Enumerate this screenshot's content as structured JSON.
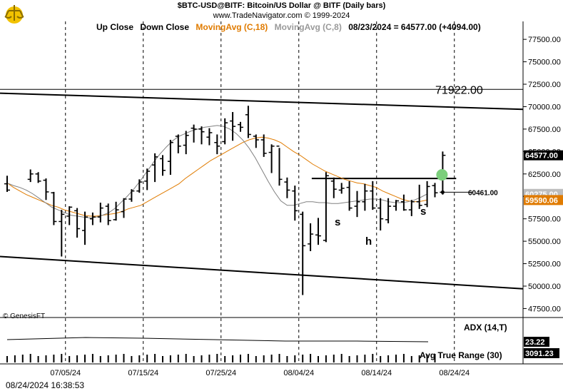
{
  "header": {
    "line1": "$BTC-USD@BITF:  Bitcoin/US Dollar @ BITF  (Daily bars)",
    "line2": "www.TradeNavigator.com © 1999-2024"
  },
  "legend": {
    "up_close": "Up Close",
    "down_close": "Down Close",
    "ma18": "MovingAvg (C,18)",
    "ma8": "MovingAvg (C,8)",
    "quote": "08/23/2024 = 64577.00 (+4094.00)"
  },
  "colors": {
    "ma18": "#e07b00",
    "ma8": "#808080",
    "bars": "#000000",
    "green_dot": "#7ccf7c",
    "tag_bg": "#000000",
    "tag_ma8": "#bdbdbd",
    "tag_ma18": "#e07b00"
  },
  "price_tags": {
    "last": "64577.00",
    "ma8": "60275.00",
    "ma18": "59590.06",
    "marker": "60461.00",
    "level": "71922.00"
  },
  "pattern_labels": {
    "left_shoulder": "s",
    "head": "h",
    "right_shoulder": "s"
  },
  "indicators": {
    "adx_label": "ADX (14,T)",
    "adx_value": "23.22",
    "atr_label": "Avg True Range (30)",
    "atr_value": "3091.23"
  },
  "copyright": "© GenesisFT",
  "timestamp": "08/24/2024 16:38:53",
  "chart_data": {
    "type": "ohlc",
    "title": "$BTC-USD@BITF: Bitcoin/US Dollar @ BITF (Daily bars)",
    "y_ticks": [
      "77500.00",
      "75000.00",
      "72500.00",
      "70000.00",
      "67500.00",
      "65000.00",
      "62500.00",
      "60000.00",
      "57500.00",
      "55000.00",
      "52500.00",
      "50000.00",
      "47500.00"
    ],
    "ylim": [
      46500,
      79500
    ],
    "x_ticks": [
      "07/05/24",
      "07/15/24",
      "07/25/24",
      "08/04/24",
      "08/14/24",
      "08/24/24"
    ],
    "horizontal_levels": [
      71922,
      62000
    ],
    "trendlines": [
      {
        "from": [
          "06/25/24",
          71500
        ],
        "to": [
          "08/31/24",
          69700
        ]
      },
      {
        "from": [
          "06/25/24",
          53300
        ],
        "to": [
          "08/31/24",
          49700
        ]
      }
    ],
    "series": [
      {
        "name": "MovingAvg (C,18)",
        "values": [
          61500,
          61000,
          60600,
          60200,
          59900,
          59600,
          59300,
          59000,
          58800,
          58500,
          58300,
          58100,
          57900,
          57800,
          57800,
          57900,
          58000,
          58100,
          58300,
          58600,
          58800,
          59000,
          59400,
          59800,
          60200,
          60600,
          61000,
          61400,
          62000,
          62500,
          63000,
          63500,
          64000,
          64400,
          64800,
          65200,
          65600,
          66000,
          66300,
          66500,
          66600,
          66500,
          66300,
          66000,
          65500,
          65000,
          64600,
          64100,
          63600,
          63200,
          62800,
          62500,
          62200,
          61900,
          61700,
          61500,
          61400,
          61200,
          61000,
          60600,
          60300,
          60000,
          59700,
          59500,
          59400,
          59450,
          59590
        ]
      },
      {
        "name": "MovingAvg (C,8)",
        "values": [
          61500,
          61200,
          61000,
          60700,
          60300,
          59800,
          59300,
          58800,
          58500,
          58200,
          57900,
          57800,
          57700,
          57600,
          57700,
          57900,
          58200,
          58700,
          59400,
          60100,
          60900,
          61800,
          62800,
          63800,
          64700,
          65500,
          66200,
          66700,
          67000,
          67300,
          67500,
          67700,
          67800,
          67900,
          67800,
          67500,
          67000,
          66300,
          65400,
          64300,
          63000,
          61700,
          60500,
          59500,
          59000,
          59000,
          59200,
          59400,
          59400,
          59300,
          59300,
          59200,
          59200,
          59300,
          59400,
          59500,
          59600,
          59700,
          59700,
          59600,
          59400,
          59300,
          59300,
          59400,
          59600,
          59900,
          60275
        ]
      }
    ],
    "bars": [
      {
        "date": "06/28",
        "h": 62300,
        "l": 60500,
        "o": 61400,
        "c": 60700
      },
      {
        "date": "07/01",
        "h": 63000,
        "l": 61600,
        "o": 61900,
        "c": 62500
      },
      {
        "date": "07/02",
        "h": 62700,
        "l": 61500,
        "o": 62500,
        "c": 61700
      },
      {
        "date": "07/03",
        "h": 62000,
        "l": 59600,
        "o": 61800,
        "c": 60500
      },
      {
        "date": "07/04",
        "h": 60500,
        "l": 56800,
        "o": 60400,
        "c": 57200
      },
      {
        "date": "07/05",
        "h": 58500,
        "l": 53300,
        "o": 57200,
        "c": 58000
      },
      {
        "date": "07/06",
        "h": 58900,
        "l": 56800,
        "o": 57800,
        "c": 58800
      },
      {
        "date": "07/07",
        "h": 58700,
        "l": 55400,
        "o": 58400,
        "c": 56400
      },
      {
        "date": "07/08",
        "h": 58300,
        "l": 54600,
        "o": 56200,
        "c": 57700
      },
      {
        "date": "07/09",
        "h": 58200,
        "l": 56800,
        "o": 57500,
        "c": 57700
      },
      {
        "date": "07/10",
        "h": 59300,
        "l": 57100,
        "o": 57700,
        "c": 58700
      },
      {
        "date": "07/11",
        "h": 59200,
        "l": 56800,
        "o": 58900,
        "c": 57300
      },
      {
        "date": "07/12",
        "h": 59400,
        "l": 57300,
        "o": 57400,
        "c": 58500
      },
      {
        "date": "07/13",
        "h": 59800,
        "l": 57600,
        "o": 58300,
        "c": 59700
      },
      {
        "date": "07/14",
        "h": 60800,
        "l": 59400,
        "o": 59700,
        "c": 60600
      },
      {
        "date": "07/15",
        "h": 61900,
        "l": 60400,
        "o": 60600,
        "c": 61600
      },
      {
        "date": "07/16",
        "h": 63100,
        "l": 60700,
        "o": 61700,
        "c": 62800
      },
      {
        "date": "07/17",
        "h": 64800,
        "l": 61600,
        "o": 63500,
        "c": 64400
      },
      {
        "date": "07/18",
        "h": 64600,
        "l": 62300,
        "o": 64200,
        "c": 62900
      },
      {
        "date": "07/19",
        "h": 66300,
        "l": 62400,
        "o": 63900,
        "c": 66000
      },
      {
        "date": "07/20",
        "h": 66900,
        "l": 64800,
        "o": 66700,
        "c": 65600
      },
      {
        "date": "07/21",
        "h": 67300,
        "l": 64700,
        "o": 65700,
        "c": 66800
      },
      {
        "date": "07/22",
        "h": 68000,
        "l": 66000,
        "o": 67600,
        "c": 67500
      },
      {
        "date": "07/23",
        "h": 67800,
        "l": 65800,
        "o": 67500,
        "c": 67200
      },
      {
        "date": "07/24",
        "h": 67600,
        "l": 65700,
        "o": 66600,
        "c": 67100
      },
      {
        "date": "07/25",
        "h": 66900,
        "l": 64700,
        "o": 66000,
        "c": 65600
      },
      {
        "date": "07/26",
        "h": 68700,
        "l": 65800,
        "o": 66100,
        "c": 68200
      },
      {
        "date": "07/27",
        "h": 69400,
        "l": 66200,
        "o": 68400,
        "c": 67800
      },
      {
        "date": "07/28",
        "h": 68300,
        "l": 67200,
        "o": 68000,
        "c": 67700
      },
      {
        "date": "07/29",
        "h": 70100,
        "l": 66500,
        "o": 69100,
        "c": 66900
      },
      {
        "date": "07/30",
        "h": 66900,
        "l": 65400,
        "o": 66700,
        "c": 66300
      },
      {
        "date": "07/31",
        "h": 66900,
        "l": 64400,
        "o": 66300,
        "c": 64800
      },
      {
        "date": "08/01",
        "h": 65800,
        "l": 62600,
        "o": 64900,
        "c": 65600
      },
      {
        "date": "08/02",
        "h": 65400,
        "l": 61200,
        "o": 65600,
        "c": 61900
      },
      {
        "date": "08/03",
        "h": 62100,
        "l": 59800,
        "o": 61600,
        "c": 60700
      },
      {
        "date": "08/04",
        "h": 61200,
        "l": 57300,
        "o": 60600,
        "c": 58400
      },
      {
        "date": "08/05",
        "h": 58300,
        "l": 49000,
        "o": 58000,
        "c": 54500
      },
      {
        "date": "08/06",
        "h": 57000,
        "l": 53900,
        "o": 54700,
        "c": 55800
      },
      {
        "date": "08/07",
        "h": 57600,
        "l": 54600,
        "o": 55700,
        "c": 55600
      },
      {
        "date": "08/08",
        "h": 62700,
        "l": 54900,
        "o": 55100,
        "c": 62300
      },
      {
        "date": "08/09",
        "h": 62100,
        "l": 59800,
        "o": 61700,
        "c": 60800
      },
      {
        "date": "08/10",
        "h": 61500,
        "l": 60300,
        "o": 60700,
        "c": 60900
      },
      {
        "date": "08/11",
        "h": 61700,
        "l": 58400,
        "o": 61000,
        "c": 58700
      },
      {
        "date": "08/12",
        "h": 60600,
        "l": 57700,
        "o": 58900,
        "c": 59400
      },
      {
        "date": "08/13",
        "h": 61400,
        "l": 58400,
        "o": 59400,
        "c": 60600
      },
      {
        "date": "08/14",
        "h": 61700,
        "l": 58500,
        "o": 60600,
        "c": 58700
      },
      {
        "date": "08/15",
        "h": 59800,
        "l": 56200,
        "o": 58700,
        "c": 57500
      },
      {
        "date": "08/16",
        "h": 59800,
        "l": 57000,
        "o": 57400,
        "c": 58900
      },
      {
        "date": "08/17",
        "h": 59600,
        "l": 58400,
        "o": 58900,
        "c": 59500
      },
      {
        "date": "08/18",
        "h": 60200,
        "l": 58400,
        "o": 59400,
        "c": 58500
      },
      {
        "date": "08/19",
        "h": 59600,
        "l": 57800,
        "o": 58500,
        "c": 59400
      },
      {
        "date": "08/20",
        "h": 61300,
        "l": 58600,
        "o": 59400,
        "c": 59000
      },
      {
        "date": "08/21",
        "h": 61700,
        "l": 58800,
        "o": 59100,
        "c": 61100
      },
      {
        "date": "08/22",
        "h": 61500,
        "l": 59900,
        "o": 61200,
        "c": 60400
      },
      {
        "date": "08/23",
        "h": 65000,
        "l": 60200,
        "o": 60461,
        "c": 64577
      }
    ],
    "adx": 23.22,
    "atr": 3091.23
  }
}
